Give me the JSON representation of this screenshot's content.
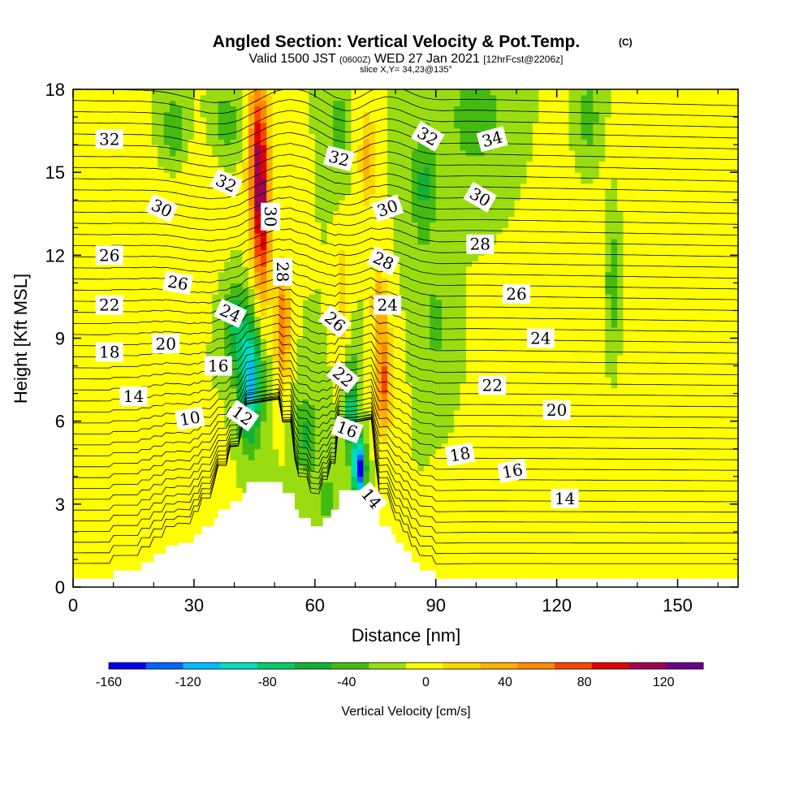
{
  "chart_data": {
    "type": "heatmap",
    "title": "Angled Section: Vertical Velocity & Pot.Temp.",
    "title_tag": "(C)",
    "subtitle_parts": {
      "valid": "Valid 1500 JST",
      "utc": "(0600Z)",
      "date": "WED 27 Jan 2021",
      "fcst": "[12hrFcst@2206z]"
    },
    "slice_text": "slice X,Y= 34,23@135°",
    "xlabel": "Distance [nm]",
    "ylabel": "Height [Kft MSL]",
    "xlim": [
      0,
      165
    ],
    "ylim": [
      0,
      18
    ],
    "x_ticks": [
      "0",
      "30",
      "60",
      "90",
      "120",
      "150"
    ],
    "y_ticks": [
      "0",
      "3",
      "6",
      "9",
      "12",
      "15",
      "18"
    ],
    "colorbar": {
      "label": "Vertical Velocity [cm/s]",
      "min": -160,
      "max": 140,
      "step": 20,
      "tick_labels": [
        "-160",
        "-120",
        "-80",
        "-40",
        "0",
        "40",
        "80",
        "120"
      ],
      "colors": [
        "#0000ee",
        "#0066ff",
        "#00bbff",
        "#00ddbb",
        "#00cc66",
        "#11b233",
        "#44bb11",
        "#99dd11",
        "#ffff00",
        "#ffd700",
        "#ffb000",
        "#ff8800",
        "#ff4400",
        "#e00000",
        "#a00050",
        "#6a0090"
      ]
    },
    "background_level": 0,
    "updrafts": [
      {
        "x": 46,
        "y": 15.5,
        "sx": 2.5,
        "sy": 3.2,
        "v": 110
      },
      {
        "x": 47,
        "y": 12.5,
        "sx": 2.0,
        "sy": 3.0,
        "v": 70
      },
      {
        "x": 52,
        "y": 9.5,
        "sx": 1.7,
        "sy": 2.2,
        "v": 80
      },
      {
        "x": 77,
        "y": 7.5,
        "sx": 2.0,
        "sy": 2.0,
        "v": 85
      },
      {
        "x": 76,
        "y": 10.3,
        "sx": 1.8,
        "sy": 1.2,
        "v": 50
      },
      {
        "x": 73,
        "y": 15.5,
        "sx": 2.0,
        "sy": 2.0,
        "v": 45
      },
      {
        "x": 67,
        "y": 10.5,
        "sx": 1.5,
        "sy": 2.0,
        "v": 40
      },
      {
        "x": 28,
        "y": 14.0,
        "sx": 10.0,
        "sy": 3.0,
        "v": 15
      },
      {
        "x": 32,
        "y": 3.5,
        "sx": 6.0,
        "sy": 2.0,
        "v": 20
      },
      {
        "x": 145,
        "y": 2.0,
        "sx": 10.0,
        "sy": 2.0,
        "v": 15
      },
      {
        "x": 140,
        "y": 11.0,
        "sx": 15.0,
        "sy": 4.0,
        "v": 12
      }
    ],
    "downdrafts": [
      {
        "x": 44,
        "y": 7.5,
        "sx": 3.0,
        "sy": 2.2,
        "v": -110
      },
      {
        "x": 40,
        "y": 9.5,
        "sx": 3.0,
        "sy": 1.5,
        "v": -55
      },
      {
        "x": 71,
        "y": 4.3,
        "sx": 1.5,
        "sy": 1.0,
        "v": -160
      },
      {
        "x": 69,
        "y": 6.5,
        "sx": 1.5,
        "sy": 1.8,
        "v": -80
      },
      {
        "x": 58,
        "y": 5.5,
        "sx": 3.0,
        "sy": 1.5,
        "v": -45
      },
      {
        "x": 63,
        "y": 3.2,
        "sx": 2.0,
        "sy": 0.8,
        "v": -35
      },
      {
        "x": 25,
        "y": 16.5,
        "sx": 3.5,
        "sy": 1.5,
        "v": -40
      },
      {
        "x": 38,
        "y": 16.8,
        "sx": 4.0,
        "sy": 1.2,
        "v": -35
      },
      {
        "x": 66,
        "y": 16.5,
        "sx": 2.0,
        "sy": 1.5,
        "v": -40
      },
      {
        "x": 87,
        "y": 14.5,
        "sx": 3.0,
        "sy": 2.5,
        "v": -45
      },
      {
        "x": 100,
        "y": 17.0,
        "sx": 6.0,
        "sy": 1.8,
        "v": -40
      },
      {
        "x": 134,
        "y": 11.0,
        "sx": 2.0,
        "sy": 2.5,
        "v": -45
      },
      {
        "x": 128,
        "y": 17.0,
        "sx": 2.5,
        "sy": 1.5,
        "v": -35
      },
      {
        "x": 90,
        "y": 9.5,
        "sx": 2.5,
        "sy": 1.2,
        "v": -40
      }
    ],
    "terrain": [
      [
        0,
        0.3
      ],
      [
        10,
        0.3
      ],
      [
        10,
        0.6
      ],
      [
        17,
        0.6
      ],
      [
        17,
        0.9
      ],
      [
        20,
        0.9
      ],
      [
        20,
        1.2
      ],
      [
        23,
        1.2
      ],
      [
        23,
        1.5
      ],
      [
        26,
        1.5
      ],
      [
        26,
        1.6
      ],
      [
        30,
        1.6
      ],
      [
        30,
        1.9
      ],
      [
        32,
        1.9
      ],
      [
        32,
        2.2
      ],
      [
        35,
        2.2
      ],
      [
        35,
        2.5
      ],
      [
        36,
        2.5
      ],
      [
        36,
        2.8
      ],
      [
        39,
        2.8
      ],
      [
        39,
        3.1
      ],
      [
        42,
        3.1
      ],
      [
        42,
        3.4
      ],
      [
        43,
        3.4
      ],
      [
        43,
        3.8
      ],
      [
        52,
        3.8
      ],
      [
        52,
        3.4
      ],
      [
        55,
        3.4
      ],
      [
        55,
        2.8
      ],
      [
        56,
        2.8
      ],
      [
        56,
        2.5
      ],
      [
        59,
        2.5
      ],
      [
        59,
        2.2
      ],
      [
        62,
        2.2
      ],
      [
        62,
        2.5
      ],
      [
        64,
        2.5
      ],
      [
        64,
        2.8
      ],
      [
        66,
        2.8
      ],
      [
        66,
        3.5
      ],
      [
        75,
        3.5
      ],
      [
        75,
        2.8
      ],
      [
        76,
        2.8
      ],
      [
        76,
        2.2
      ],
      [
        79,
        2.2
      ],
      [
        79,
        1.9
      ],
      [
        80,
        1.9
      ],
      [
        80,
        1.6
      ],
      [
        82,
        1.6
      ],
      [
        82,
        1.3
      ],
      [
        84,
        1.3
      ],
      [
        84,
        0.9
      ],
      [
        86,
        0.9
      ],
      [
        86,
        0.6
      ],
      [
        90,
        0.6
      ],
      [
        90,
        0.3
      ],
      [
        165,
        0.3
      ]
    ],
    "isentropes": {
      "levels": [
        10,
        12,
        14,
        16,
        18,
        20,
        22,
        24,
        26,
        28,
        30,
        32,
        34
      ],
      "minor_count": 44,
      "labels": [
        {
          "text": "32",
          "x": 9,
          "y": 16.2,
          "rot": 0
        },
        {
          "text": "32",
          "x": 38,
          "y": 14.6,
          "rot": 25
        },
        {
          "text": "32",
          "x": 66,
          "y": 15.5,
          "rot": 15
        },
        {
          "text": "32",
          "x": 88,
          "y": 16.3,
          "rot": 30
        },
        {
          "text": "34",
          "x": 104,
          "y": 16.2,
          "rot": -15
        },
        {
          "text": "30",
          "x": 22,
          "y": 13.7,
          "rot": 25
        },
        {
          "text": "30",
          "x": 49,
          "y": 13.4,
          "rot": 90
        },
        {
          "text": "30",
          "x": 78,
          "y": 13.7,
          "rot": -20
        },
        {
          "text": "30",
          "x": 101,
          "y": 14.1,
          "rot": 30
        },
        {
          "text": "28",
          "x": 52,
          "y": 11.4,
          "rot": 90
        },
        {
          "text": "28",
          "x": 77,
          "y": 11.8,
          "rot": 25
        },
        {
          "text": "28",
          "x": 101,
          "y": 12.4,
          "rot": 0
        },
        {
          "text": "26",
          "x": 9,
          "y": 12.0,
          "rot": 0
        },
        {
          "text": "26",
          "x": 26,
          "y": 11.0,
          "rot": 10
        },
        {
          "text": "26",
          "x": 65,
          "y": 9.6,
          "rot": 40
        },
        {
          "text": "26",
          "x": 110,
          "y": 10.6,
          "rot": 0
        },
        {
          "text": "24",
          "x": 39,
          "y": 9.9,
          "rot": 25
        },
        {
          "text": "24",
          "x": 78,
          "y": 10.2,
          "rot": 0
        },
        {
          "text": "24",
          "x": 116,
          "y": 9.0,
          "rot": 0
        },
        {
          "text": "22",
          "x": 9,
          "y": 10.2,
          "rot": 0
        },
        {
          "text": "22",
          "x": 67,
          "y": 7.6,
          "rot": 40
        },
        {
          "text": "22",
          "x": 104,
          "y": 7.3,
          "rot": 0
        },
        {
          "text": "20",
          "x": 23,
          "y": 8.8,
          "rot": 0
        },
        {
          "text": "20",
          "x": 120,
          "y": 6.4,
          "rot": 0
        },
        {
          "text": "18",
          "x": 9,
          "y": 8.5,
          "rot": 0
        },
        {
          "text": "18",
          "x": 96,
          "y": 4.8,
          "rot": -10
        },
        {
          "text": "16",
          "x": 36,
          "y": 8.0,
          "rot": 0
        },
        {
          "text": "16",
          "x": 68,
          "y": 5.7,
          "rot": 20
        },
        {
          "text": "16",
          "x": 109,
          "y": 4.2,
          "rot": -10
        },
        {
          "text": "14",
          "x": 15,
          "y": 6.9,
          "rot": 0
        },
        {
          "text": "14",
          "x": 74,
          "y": 3.2,
          "rot": 50
        },
        {
          "text": "14",
          "x": 122,
          "y": 3.2,
          "rot": 0
        },
        {
          "text": "12",
          "x": 42,
          "y": 6.2,
          "rot": 35
        },
        {
          "text": "10",
          "x": 29,
          "y": 6.1,
          "rot": -10
        }
      ]
    },
    "grid": false
  }
}
